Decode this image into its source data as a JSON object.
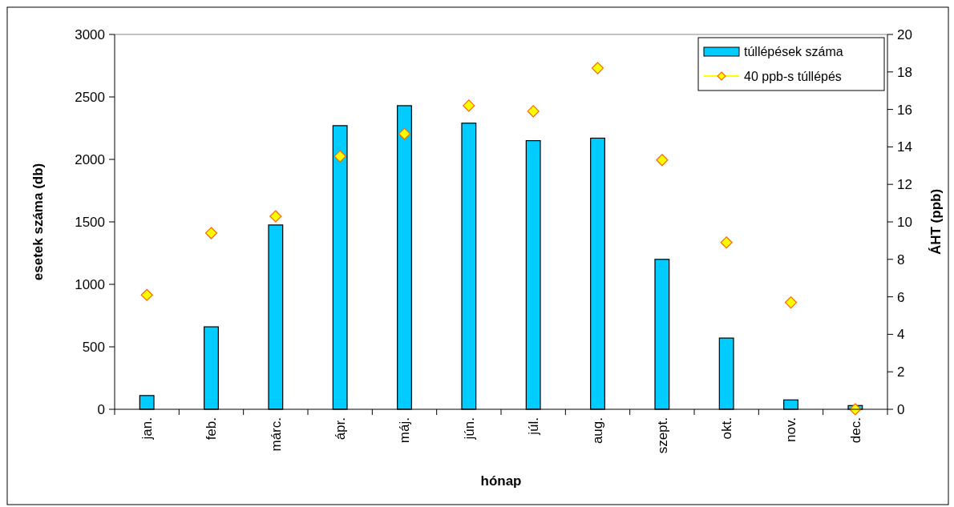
{
  "chart_data": {
    "type": "bar",
    "xlabel": "hónap",
    "ylabel": "esetek száma (db)",
    "y2label": "ÁHT (ppb)",
    "categories": [
      "jan.",
      "feb.",
      "márc.",
      "ápr.",
      "máj.",
      "jún.",
      "júl.",
      "aug.",
      "szept.",
      "okt.",
      "nov.",
      "dec."
    ],
    "series": [
      {
        "name": "túllépések száma",
        "color": "#00ccff",
        "values": [
          110,
          660,
          1475,
          2270,
          2430,
          2290,
          2150,
          2170,
          1200,
          570,
          75,
          30
        ]
      },
      {
        "name": "40 ppb-s túllépés",
        "type": "scatter",
        "axis": "y2",
        "color": "#ffff00",
        "marker": "diamond",
        "values": [
          6.1,
          9.4,
          10.3,
          13.5,
          14.7,
          16.2,
          15.9,
          18.2,
          13.3,
          8.9,
          5.7,
          0
        ]
      }
    ],
    "ylim": [
      0,
      3000
    ],
    "yticks": [
      0,
      500,
      1000,
      1500,
      2000,
      2500,
      3000
    ],
    "y2lim": [
      0,
      20
    ],
    "y2ticks": [
      0,
      2,
      4,
      6,
      8,
      10,
      12,
      14,
      16,
      18,
      20
    ],
    "grid": false,
    "legend": "top right"
  }
}
